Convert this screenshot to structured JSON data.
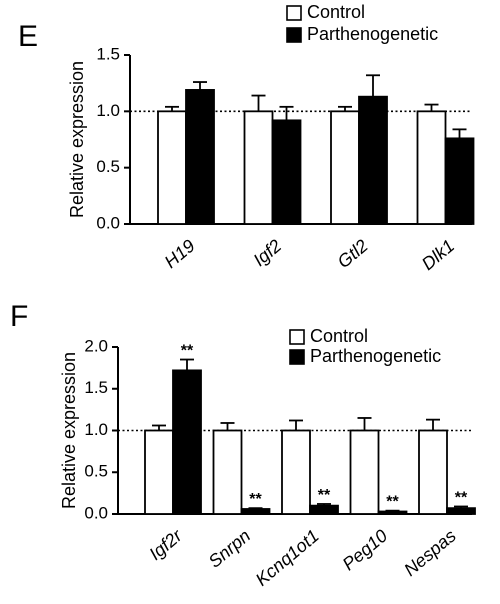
{
  "chart_data": [
    {
      "panel": "E",
      "type": "bar",
      "title": "",
      "xlabel": "",
      "ylabel": "Relative expression",
      "ylim": [
        0,
        1.5
      ],
      "yticks": [
        "0.0",
        "0.5",
        "1.0",
        "1.5"
      ],
      "categories": [
        "H19",
        "Igf2",
        "Gtl2",
        "Dlk1"
      ],
      "reference_line": 1.0,
      "legend_position": "top-right",
      "series": [
        {
          "name": "Control",
          "color": "#ffffff",
          "values": [
            1.0,
            1.0,
            1.0,
            1.0
          ],
          "errors": [
            0.04,
            0.14,
            0.04,
            0.06
          ]
        },
        {
          "name": "Parthenogenetic",
          "color": "#000000",
          "values": [
            1.19,
            0.92,
            1.13,
            0.76
          ],
          "errors": [
            0.07,
            0.12,
            0.19,
            0.08
          ]
        }
      ],
      "annotations": []
    },
    {
      "panel": "F",
      "type": "bar",
      "title": "",
      "xlabel": "",
      "ylabel": "Relative expression",
      "ylim": [
        0,
        2.0
      ],
      "yticks": [
        "0.0",
        "0.5",
        "1.0",
        "1.5",
        "2.0"
      ],
      "categories": [
        "Igf2r",
        "Snrpn",
        "Kcnq1ot1",
        "Peg10",
        "Nespas"
      ],
      "reference_line": 1.0,
      "legend_position": "top-right",
      "series": [
        {
          "name": "Control",
          "color": "#ffffff",
          "values": [
            1.0,
            1.0,
            1.0,
            1.0,
            1.0
          ],
          "errors": [
            0.06,
            0.09,
            0.12,
            0.15,
            0.13
          ]
        },
        {
          "name": "Parthenogenetic",
          "color": "#000000",
          "values": [
            1.72,
            0.06,
            0.1,
            0.03,
            0.07
          ],
          "errors": [
            0.13,
            0.01,
            0.02,
            0.01,
            0.02
          ]
        }
      ],
      "annotations": [
        "**",
        "**",
        "**",
        "**",
        "**"
      ]
    }
  ]
}
